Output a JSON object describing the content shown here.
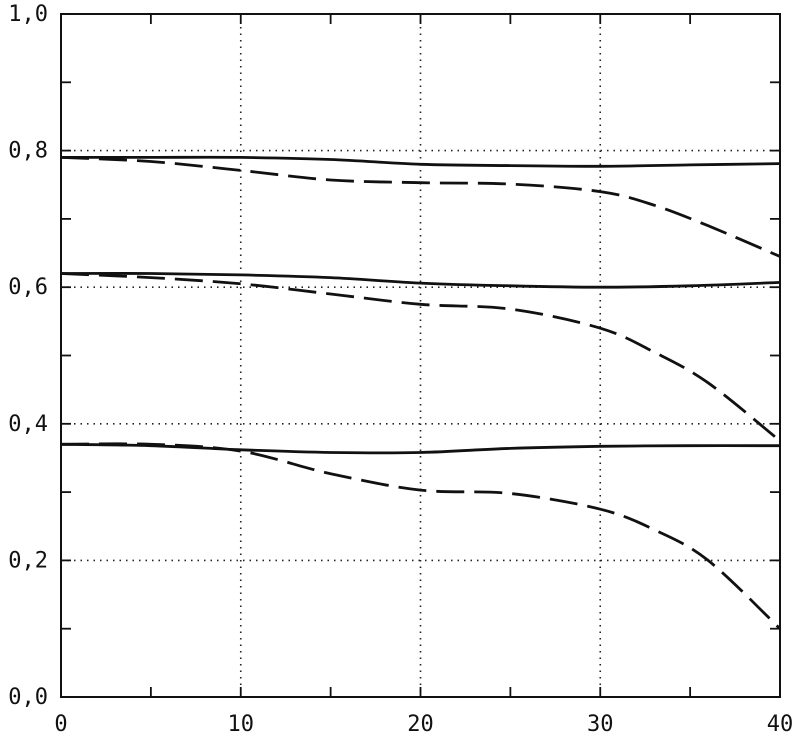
{
  "chart_data": {
    "type": "line",
    "title": "",
    "xlabel": "",
    "ylabel": "",
    "xlim": [
      0,
      40
    ],
    "ylim": [
      0.0,
      1.0
    ],
    "x_ticks": [
      0,
      10,
      20,
      30,
      40
    ],
    "x_tick_labels": [
      "0",
      "10",
      "20",
      "30",
      "40"
    ],
    "y_ticks": [
      0.0,
      0.2,
      0.4,
      0.6,
      0.8,
      1.0
    ],
    "y_tick_labels": [
      "0,0",
      "0,2",
      "0,4",
      "0,6",
      "0,8",
      "1,0"
    ],
    "y_minor_step": 0.1,
    "x_minor_step": 5,
    "grid": "dotted at major ticks",
    "legend": "none",
    "series": [
      {
        "style": "solid",
        "x": [
          0,
          5,
          10,
          15,
          20,
          25,
          30,
          35,
          40
        ],
        "y": [
          0.79,
          0.79,
          0.79,
          0.787,
          0.78,
          0.778,
          0.777,
          0.779,
          0.781
        ]
      },
      {
        "style": "dashed",
        "x": [
          0,
          5,
          10,
          15,
          20,
          25,
          30,
          33,
          36,
          40
        ],
        "y": [
          0.79,
          0.784,
          0.771,
          0.757,
          0.753,
          0.751,
          0.74,
          0.72,
          0.69,
          0.645
        ]
      },
      {
        "style": "solid",
        "x": [
          0,
          5,
          10,
          15,
          20,
          25,
          30,
          35,
          40
        ],
        "y": [
          0.62,
          0.62,
          0.618,
          0.614,
          0.606,
          0.602,
          0.6,
          0.602,
          0.607
        ]
      },
      {
        "style": "dashed",
        "x": [
          0,
          5,
          10,
          15,
          20,
          25,
          30,
          33,
          36,
          40
        ],
        "y": [
          0.62,
          0.614,
          0.605,
          0.59,
          0.575,
          0.568,
          0.54,
          0.505,
          0.46,
          0.375
        ]
      },
      {
        "style": "solid",
        "x": [
          0,
          5,
          10,
          15,
          20,
          25,
          30,
          35,
          40
        ],
        "y": [
          0.37,
          0.368,
          0.362,
          0.358,
          0.358,
          0.364,
          0.367,
          0.368,
          0.368
        ]
      },
      {
        "style": "dashed",
        "x": [
          0,
          5,
          10,
          15,
          20,
          25,
          30,
          33,
          36,
          40
        ],
        "y": [
          0.37,
          0.37,
          0.36,
          0.327,
          0.303,
          0.298,
          0.275,
          0.245,
          0.2,
          0.1
        ]
      }
    ]
  }
}
